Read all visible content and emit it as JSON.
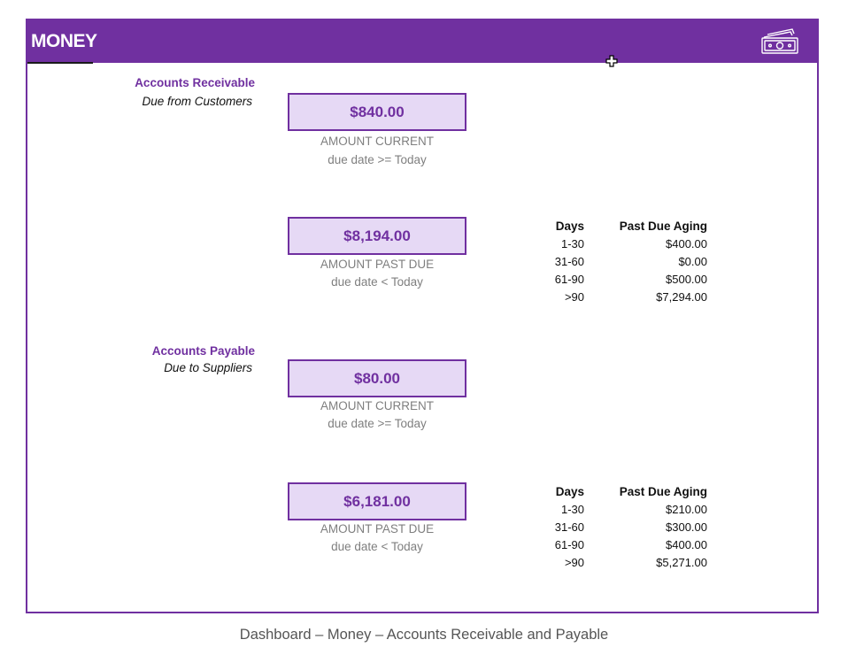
{
  "header": {
    "title": "MONEY",
    "icon": "money-bill-icon",
    "bg_color": "#7030a0"
  },
  "receivable": {
    "title": "Accounts Receivable",
    "subtitle": "Due from Customers",
    "current": {
      "amount": "$840.00",
      "label": "AMOUNT CURRENT",
      "condition": "due date >= Today"
    },
    "past_due": {
      "amount": "$8,194.00",
      "label": "AMOUNT PAST DUE",
      "condition": "due date < Today"
    },
    "aging": {
      "days_header": "Days",
      "amount_header": "Past Due Aging",
      "rows": [
        {
          "days": "1-30",
          "amount": "$400.00"
        },
        {
          "days": "31-60",
          "amount": "$0.00"
        },
        {
          "days": "61-90",
          "amount": "$500.00"
        },
        {
          "days": ">90",
          "amount": "$7,294.00"
        }
      ]
    }
  },
  "payable": {
    "title": "Accounts Payable",
    "subtitle": "Due to Suppliers",
    "current": {
      "amount": "$80.00",
      "label": "AMOUNT CURRENT",
      "condition": "due date >= Today"
    },
    "past_due": {
      "amount": "$6,181.00",
      "label": "AMOUNT PAST DUE",
      "condition": "due date < Today"
    },
    "aging": {
      "days_header": "Days",
      "amount_header": "Past Due Aging",
      "rows": [
        {
          "days": "1-30",
          "amount": "$210.00"
        },
        {
          "days": "31-60",
          "amount": "$300.00"
        },
        {
          "days": "61-90",
          "amount": "$400.00"
        },
        {
          "days": ">90",
          "amount": "$5,271.00"
        }
      ]
    }
  },
  "caption": "Dashboard – Money – Accounts Receivable and Payable",
  "colors": {
    "accent": "#7030a0",
    "box_fill": "#e6d9f5",
    "muted_text": "#7f7f7f"
  }
}
